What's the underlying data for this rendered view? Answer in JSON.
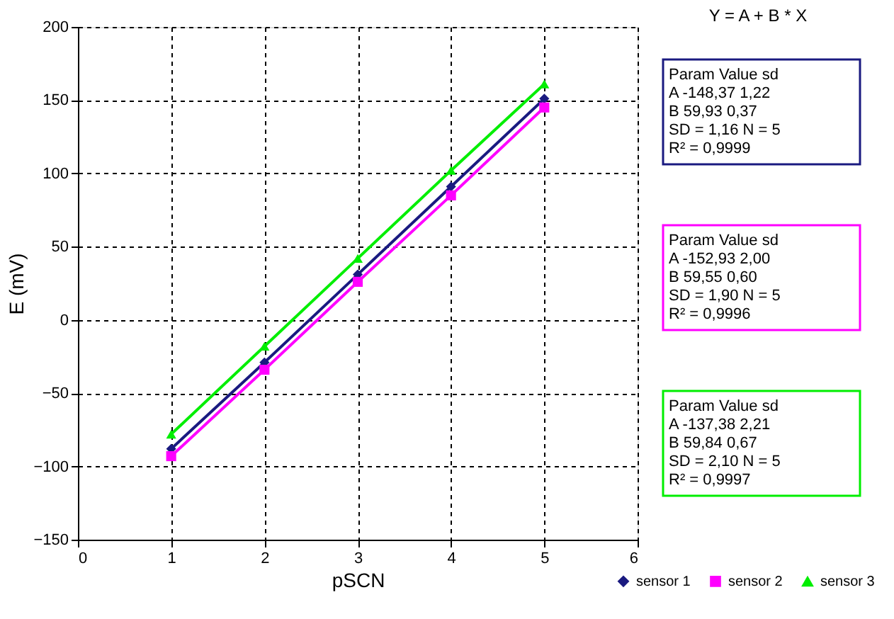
{
  "chart_data": {
    "type": "line",
    "xlabel": "pSCN",
    "ylabel": "E (mV)",
    "xlim": [
      0,
      6
    ],
    "xticks": [
      0,
      1,
      2,
      3,
      4,
      5,
      6
    ],
    "ylim": [
      -150,
      200
    ],
    "yticks": [
      -150,
      -100,
      -50,
      0,
      50,
      100,
      150,
      200
    ],
    "grid": true,
    "legend": "bottom right",
    "line_style": "solid",
    "series": [
      {
        "name": "sensor 1",
        "color": "#1a1a80",
        "marker": "diamond",
        "x": [
          1,
          2,
          3,
          4,
          5
        ],
        "values": [
          -88,
          -29,
          31,
          91,
          151
        ]
      },
      {
        "name": "sensor 2",
        "color": "#ff00ff",
        "marker": "square",
        "x": [
          1,
          2,
          3,
          4,
          5
        ],
        "values": [
          -93,
          -34,
          26,
          85,
          145
        ]
      },
      {
        "name": "sensor 3",
        "color": "#00ee00",
        "marker": "triangle",
        "x": [
          1,
          2,
          3,
          4,
          5
        ],
        "values": [
          -78,
          -18,
          42,
          102,
          161
        ]
      }
    ],
    "annotations": [
      "Y = A + B * X",
      "Param  Value      sd",
      "A   -148,37     1,22",
      "B      59,93     0,37",
      "SD = 1,16     N = 5",
      "R² = 0,9999",
      "Param  Value      sd",
      "A   -152,93     2,00",
      "B      59,55     0,60",
      "SD = 1,90     N = 5",
      "R² = 0,9996",
      "Param  Value      sd",
      "A   -137,38     2,21",
      "B      59,84     0,67",
      "SD = 2,10     N = 5",
      "R² = 0,9997"
    ]
  }
}
